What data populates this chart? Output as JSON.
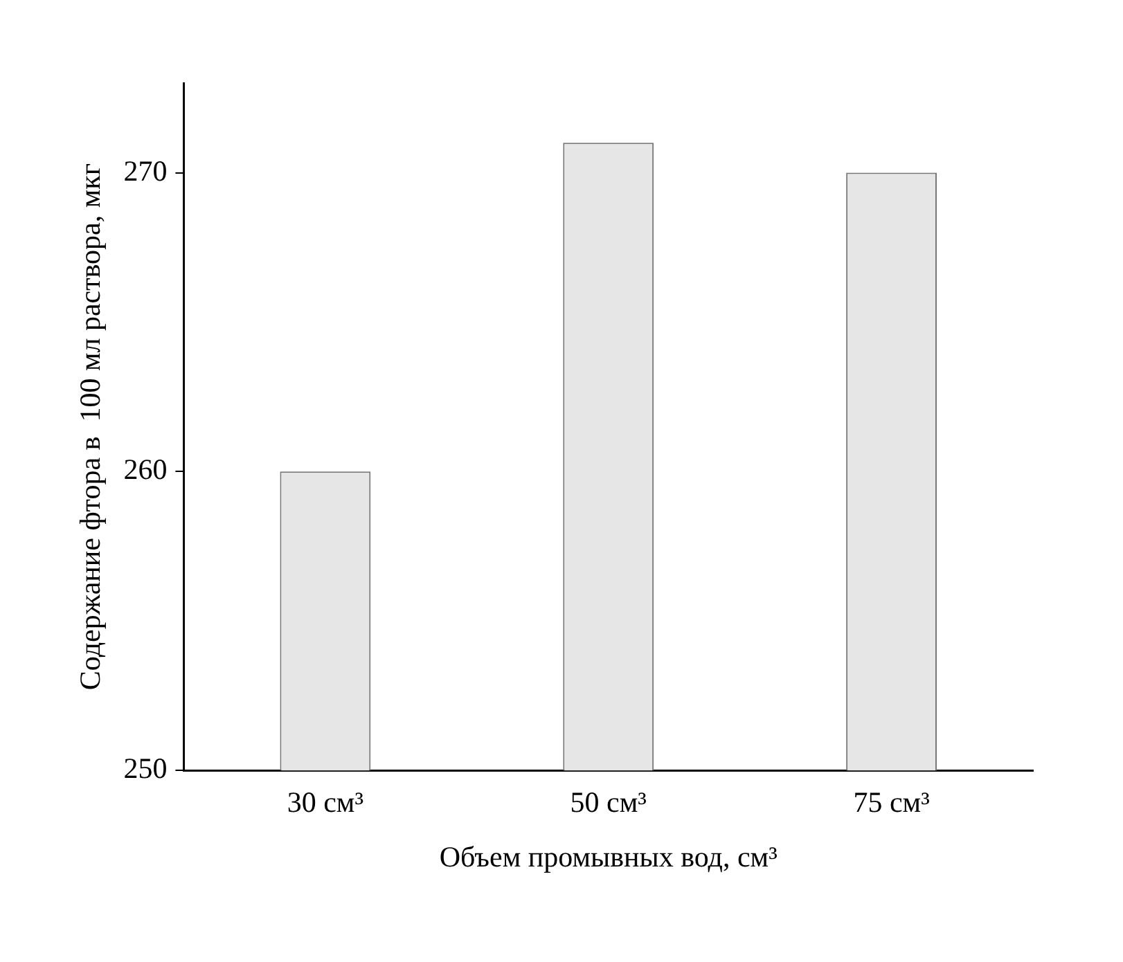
{
  "chart_data": {
    "type": "bar",
    "xlabel": "Объем промывных вод, см³",
    "ylabel": "Содержание фтора в  100 мл раствора, мкг",
    "categories": [
      "30 см³",
      "50 см³",
      "75 см³"
    ],
    "series": [
      {
        "color": "#e6e6e6",
        "values": [
          260,
          271,
          270
        ]
      }
    ],
    "ylim": [
      250,
      273
    ],
    "yticks": [
      250,
      260,
      270
    ],
    "grid": false,
    "legend": false
  }
}
